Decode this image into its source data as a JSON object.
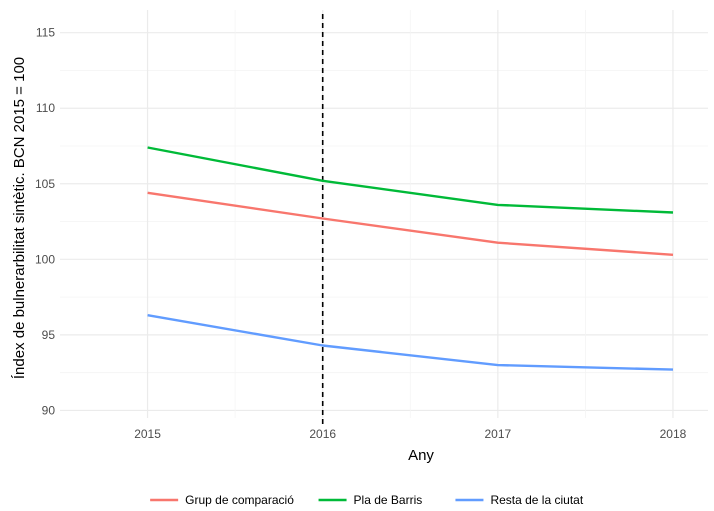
{
  "chart_data": {
    "type": "line",
    "title": "",
    "xlabel": "Any",
    "ylabel": "Índex de bulnerarbilitat sintètic. BCN 2015 = 100",
    "x": [
      2015,
      2016,
      2017,
      2018
    ],
    "xlim": [
      2014.5,
      2018.2
    ],
    "ylim": [
      89.5,
      116.5
    ],
    "y_ticks": [
      90,
      95,
      100,
      105,
      110,
      115
    ],
    "grid": true,
    "vertical_reference_line": {
      "x": 2016,
      "style": "dashed",
      "color": "#000000"
    },
    "legend_position": "bottom",
    "series": [
      {
        "name": "Grup de comparació",
        "color": "#F8766D",
        "values": [
          104.4,
          102.7,
          101.1,
          100.3
        ]
      },
      {
        "name": "Pla de Barris",
        "color": "#00BA38",
        "values": [
          107.4,
          105.2,
          103.6,
          103.1
        ]
      },
      {
        "name": "Resta de la ciutat",
        "color": "#619CFF",
        "values": [
          96.3,
          94.3,
          93.0,
          92.7
        ]
      }
    ]
  }
}
